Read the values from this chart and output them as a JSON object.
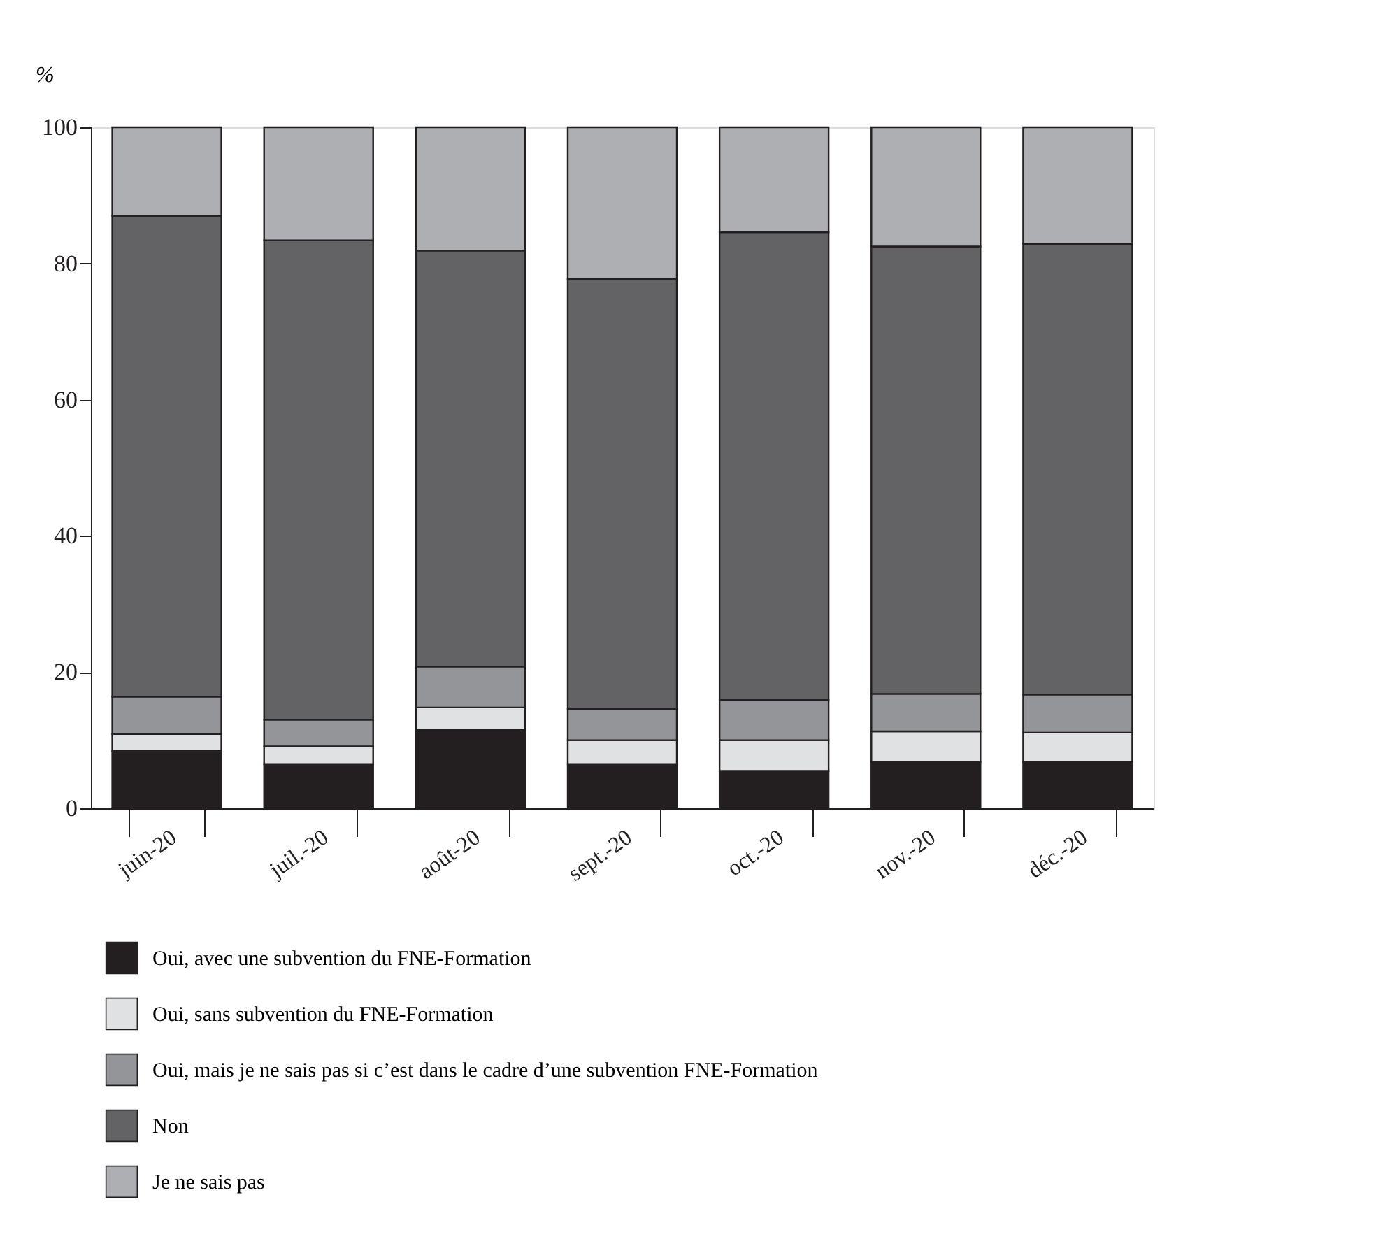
{
  "chart_data": {
    "type": "bar",
    "stacked": true,
    "ylabel": "%",
    "categories": [
      "juin-20",
      "juil.-20",
      "août-20",
      "sept.-20",
      "oct.-20",
      "nov.-20",
      "déc.-20"
    ],
    "series": [
      {
        "name": "Oui, avec une subvention du FNE-Formation",
        "color": "#231f20",
        "values": [
          8.4,
          6.5,
          11.5,
          6.5,
          5.5,
          6.8,
          6.8
        ]
      },
      {
        "name": "Oui, sans subvention du FNE-Formation",
        "color": "#e0e1e3",
        "values": [
          2.5,
          2.6,
          3.3,
          3.5,
          4.5,
          4.5,
          4.3
        ]
      },
      {
        "name": "Oui, mais je ne sais pas si c’est dans le cadre d’une subvention FNE-Formation",
        "color": "#939598",
        "values": [
          5.5,
          3.9,
          6.0,
          4.6,
          5.9,
          5.5,
          5.6
        ]
      },
      {
        "name": "Non",
        "color": "#636365",
        "values": [
          70.6,
          70.4,
          61.1,
          63.1,
          68.7,
          65.7,
          66.2
        ]
      },
      {
        "name": "Je ne sais pas",
        "color": "#aeafb2",
        "values": [
          13.0,
          16.6,
          18.1,
          22.3,
          15.4,
          17.5,
          17.1
        ]
      }
    ],
    "ylim": [
      0,
      100
    ],
    "yticks": [
      0,
      20,
      40,
      60,
      80,
      100
    ],
    "grid": false,
    "legend": "bottom"
  }
}
